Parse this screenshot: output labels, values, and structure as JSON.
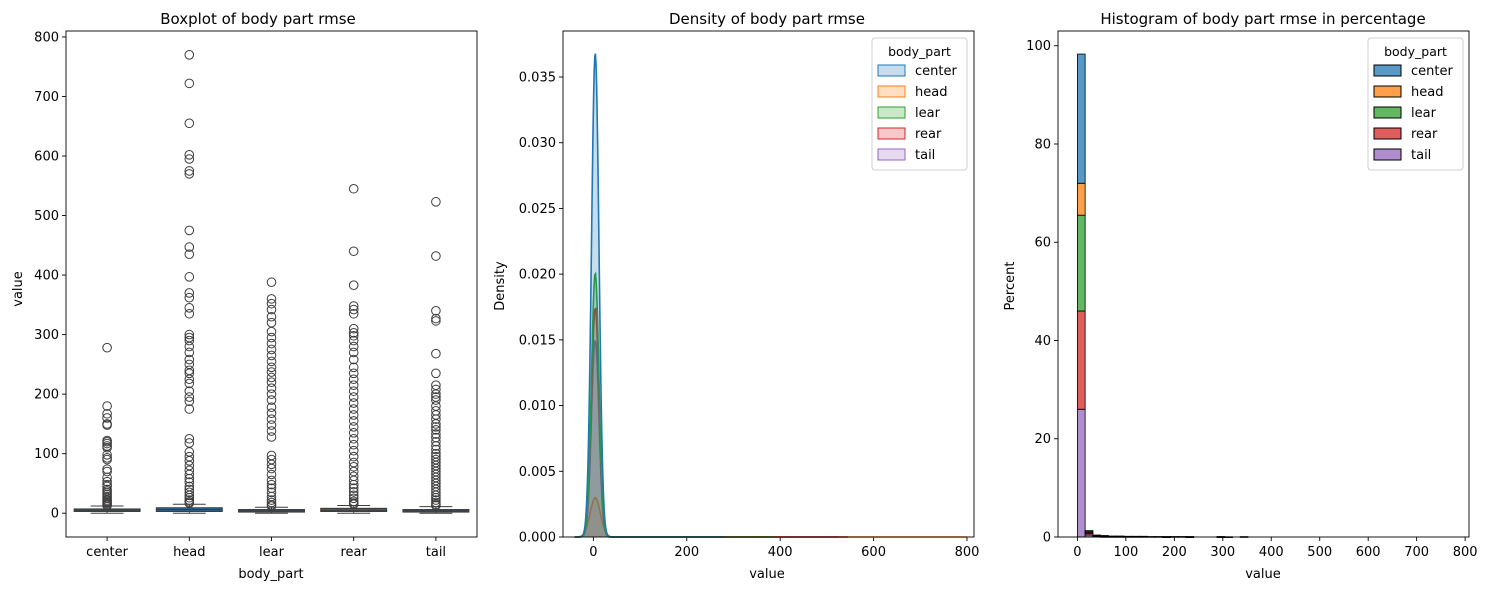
{
  "chart_data": [
    {
      "type": "box",
      "title": "Boxplot of body part rmse",
      "xlabel": "body_part",
      "ylabel": "value",
      "categories": [
        "center",
        "head",
        "lear",
        "rear",
        "tail"
      ],
      "ylim": [
        -40,
        810
      ],
      "yticks": [
        0,
        100,
        200,
        300,
        400,
        500,
        600,
        700,
        800
      ],
      "boxes": [
        {
          "name": "center",
          "whislo": 0,
          "q1": 3,
          "med": 5,
          "q3": 7,
          "whishi": 12,
          "fliers": [
            278,
            180,
            167,
            160,
            150,
            148,
            122,
            120,
            117,
            113,
            110,
            98,
            93,
            90,
            74,
            70,
            60,
            53,
            48,
            45,
            40,
            37,
            34,
            31,
            28,
            25,
            22,
            20,
            18,
            16,
            14,
            13
          ]
        },
        {
          "name": "head",
          "whislo": 0,
          "q1": 3,
          "med": 6,
          "q3": 9,
          "whishi": 15,
          "fliers": [
            770,
            722,
            655,
            602,
            595,
            575,
            570,
            475,
            447,
            435,
            397,
            370,
            362,
            345,
            335,
            300,
            295,
            290,
            280,
            270,
            258,
            250,
            240,
            235,
            225,
            218,
            205,
            195,
            188,
            175,
            125,
            118,
            103,
            95,
            88,
            80,
            72,
            65,
            58,
            52,
            45,
            40,
            35,
            30,
            26,
            22,
            19,
            17
          ]
        },
        {
          "name": "lear",
          "whislo": 0,
          "q1": 2,
          "med": 4,
          "q3": 6,
          "whishi": 10,
          "fliers": [
            388,
            360,
            352,
            342,
            330,
            320,
            305,
            295,
            285,
            275,
            265,
            255,
            245,
            237,
            228,
            220,
            210,
            200,
            190,
            178,
            168,
            158,
            148,
            138,
            128,
            97,
            90,
            82,
            75,
            65,
            55,
            48,
            42,
            35,
            28,
            22,
            18,
            14,
            12
          ]
        },
        {
          "name": "rear",
          "whislo": 0,
          "q1": 3,
          "med": 5,
          "q3": 8,
          "whishi": 13,
          "fliers": [
            545,
            440,
            383,
            348,
            342,
            335,
            310,
            303,
            298,
            290,
            280,
            270,
            258,
            245,
            235,
            225,
            215,
            205,
            195,
            185,
            175,
            165,
            155,
            145,
            135,
            125,
            115,
            105,
            95,
            85,
            78,
            70,
            62,
            55,
            48,
            42,
            36,
            30,
            25,
            20,
            17,
            15
          ]
        },
        {
          "name": "tail",
          "whislo": 0,
          "q1": 2,
          "med": 4,
          "q3": 6,
          "whishi": 11,
          "fliers": [
            523,
            432,
            340,
            327,
            323,
            268,
            235,
            215,
            208,
            200,
            195,
            190,
            180,
            172,
            165,
            158,
            150,
            145,
            140,
            133,
            127,
            120,
            113,
            107,
            100,
            95,
            90,
            85,
            80,
            75,
            70,
            65,
            60,
            55,
            50,
            45,
            40,
            35,
            30,
            26,
            22,
            18,
            15,
            13
          ]
        }
      ]
    },
    {
      "type": "density",
      "title": "Density of body part rmse",
      "xlabel": "value",
      "ylabel": "Density",
      "xlim": [
        -65,
        815
      ],
      "ylim": [
        0,
        0.0385
      ],
      "xticks": [
        0,
        200,
        400,
        600,
        800
      ],
      "yticks": [
        0.0,
        0.005,
        0.01,
        0.015,
        0.02,
        0.025,
        0.03,
        0.035
      ],
      "legend": {
        "title": "body_part",
        "location": "upper right"
      },
      "series": [
        {
          "name": "center",
          "color": "#1f77b4",
          "peak_x": 4,
          "peak": 0.0368,
          "width": 8,
          "x_max": 280
        },
        {
          "name": "head",
          "color": "#ff7f0e",
          "peak_x": 4,
          "peak": 0.003,
          "width": 11,
          "x_max": 800
        },
        {
          "name": "lear",
          "color": "#2ca02c",
          "peak_x": 4,
          "peak": 0.0201,
          "width": 8,
          "x_max": 390
        },
        {
          "name": "rear",
          "color": "#d62728",
          "peak_x": 4,
          "peak": 0.0175,
          "width": 8,
          "x_max": 545
        },
        {
          "name": "tail",
          "color": "#9467bd",
          "peak_x": 4,
          "peak": 0.015,
          "width": 8,
          "x_max": 525
        }
      ]
    },
    {
      "type": "histogram",
      "title": "Histogram of body part rmse in percentage",
      "xlabel": "value",
      "ylabel": "Percent",
      "xlim": [
        -40,
        808
      ],
      "ylim": [
        0,
        103
      ],
      "xticks": [
        0,
        100,
        200,
        300,
        400,
        500,
        600,
        700,
        800
      ],
      "yticks": [
        0,
        20,
        40,
        60,
        80,
        100
      ],
      "stacked": true,
      "legend": {
        "title": "body_part",
        "location": "upper right"
      },
      "series": [
        {
          "name": "center",
          "color": "#1f77b4"
        },
        {
          "name": "head",
          "color": "#ff7f0e"
        },
        {
          "name": "lear",
          "color": "#2ca02c"
        },
        {
          "name": "rear",
          "color": "#d62728"
        },
        {
          "name": "tail",
          "color": "#9467bd"
        }
      ],
      "bins": [
        {
          "x0": 0,
          "x1": 16,
          "stack": [
            [
              "tail",
              26.0
            ],
            [
              "rear",
              20.0
            ],
            [
              "lear",
              19.5
            ],
            [
              "head",
              6.5
            ],
            [
              "center",
              26.3
            ]
          ]
        },
        {
          "x0": 16,
          "x1": 32,
          "stack": [
            [
              "tail",
              0.4
            ],
            [
              "rear",
              0.3
            ],
            [
              "lear",
              0.2
            ],
            [
              "head",
              0.3
            ],
            [
              "center",
              0.1
            ]
          ]
        },
        {
          "x0": 32,
          "x1": 48,
          "stack": [
            [
              "tail",
              0.2
            ],
            [
              "rear",
              0.1
            ],
            [
              "head",
              0.1
            ]
          ]
        },
        {
          "x0": 48,
          "x1": 64,
          "stack": [
            [
              "tail",
              0.1
            ],
            [
              "rear",
              0.1
            ],
            [
              "head",
              0.1
            ]
          ]
        },
        {
          "x0": 64,
          "x1": 80,
          "stack": [
            [
              "tail",
              0.1
            ],
            [
              "rear",
              0.1
            ]
          ]
        },
        {
          "x0": 80,
          "x1": 96,
          "stack": [
            [
              "tail",
              0.1
            ],
            [
              "head",
              0.1
            ]
          ]
        },
        {
          "x0": 96,
          "x1": 112,
          "stack": [
            [
              "rear",
              0.1
            ],
            [
              "lear",
              0.05
            ]
          ]
        },
        {
          "x0": 112,
          "x1": 128,
          "stack": [
            [
              "tail",
              0.1
            ],
            [
              "lear",
              0.05
            ]
          ]
        },
        {
          "x0": 128,
          "x1": 144,
          "stack": [
            [
              "rear",
              0.1
            ],
            [
              "lear",
              0.05
            ]
          ]
        },
        {
          "x0": 144,
          "x1": 160,
          "stack": [
            [
              "tail",
              0.1
            ]
          ]
        },
        {
          "x0": 160,
          "x1": 176,
          "stack": [
            [
              "rear",
              0.1
            ]
          ]
        },
        {
          "x0": 176,
          "x1": 192,
          "stack": [
            [
              "tail",
              0.05
            ],
            [
              "lear",
              0.05
            ]
          ]
        },
        {
          "x0": 192,
          "x1": 208,
          "stack": [
            [
              "rear",
              0.1
            ]
          ]
        },
        {
          "x0": 208,
          "x1": 224,
          "stack": [
            [
              "tail",
              0.1
            ]
          ]
        },
        {
          "x0": 224,
          "x1": 240,
          "stack": [
            [
              "lear",
              0.05
            ],
            [
              "head",
              0.05
            ]
          ]
        },
        {
          "x0": 288,
          "x1": 304,
          "stack": [
            [
              "rear",
              0.05
            ],
            [
              "lear",
              0.05
            ]
          ]
        },
        {
          "x0": 304,
          "x1": 320,
          "stack": [
            [
              "tail",
              0.05
            ]
          ]
        },
        {
          "x0": 336,
          "x1": 352,
          "stack": [
            [
              "rear",
              0.08
            ]
          ]
        }
      ]
    }
  ]
}
